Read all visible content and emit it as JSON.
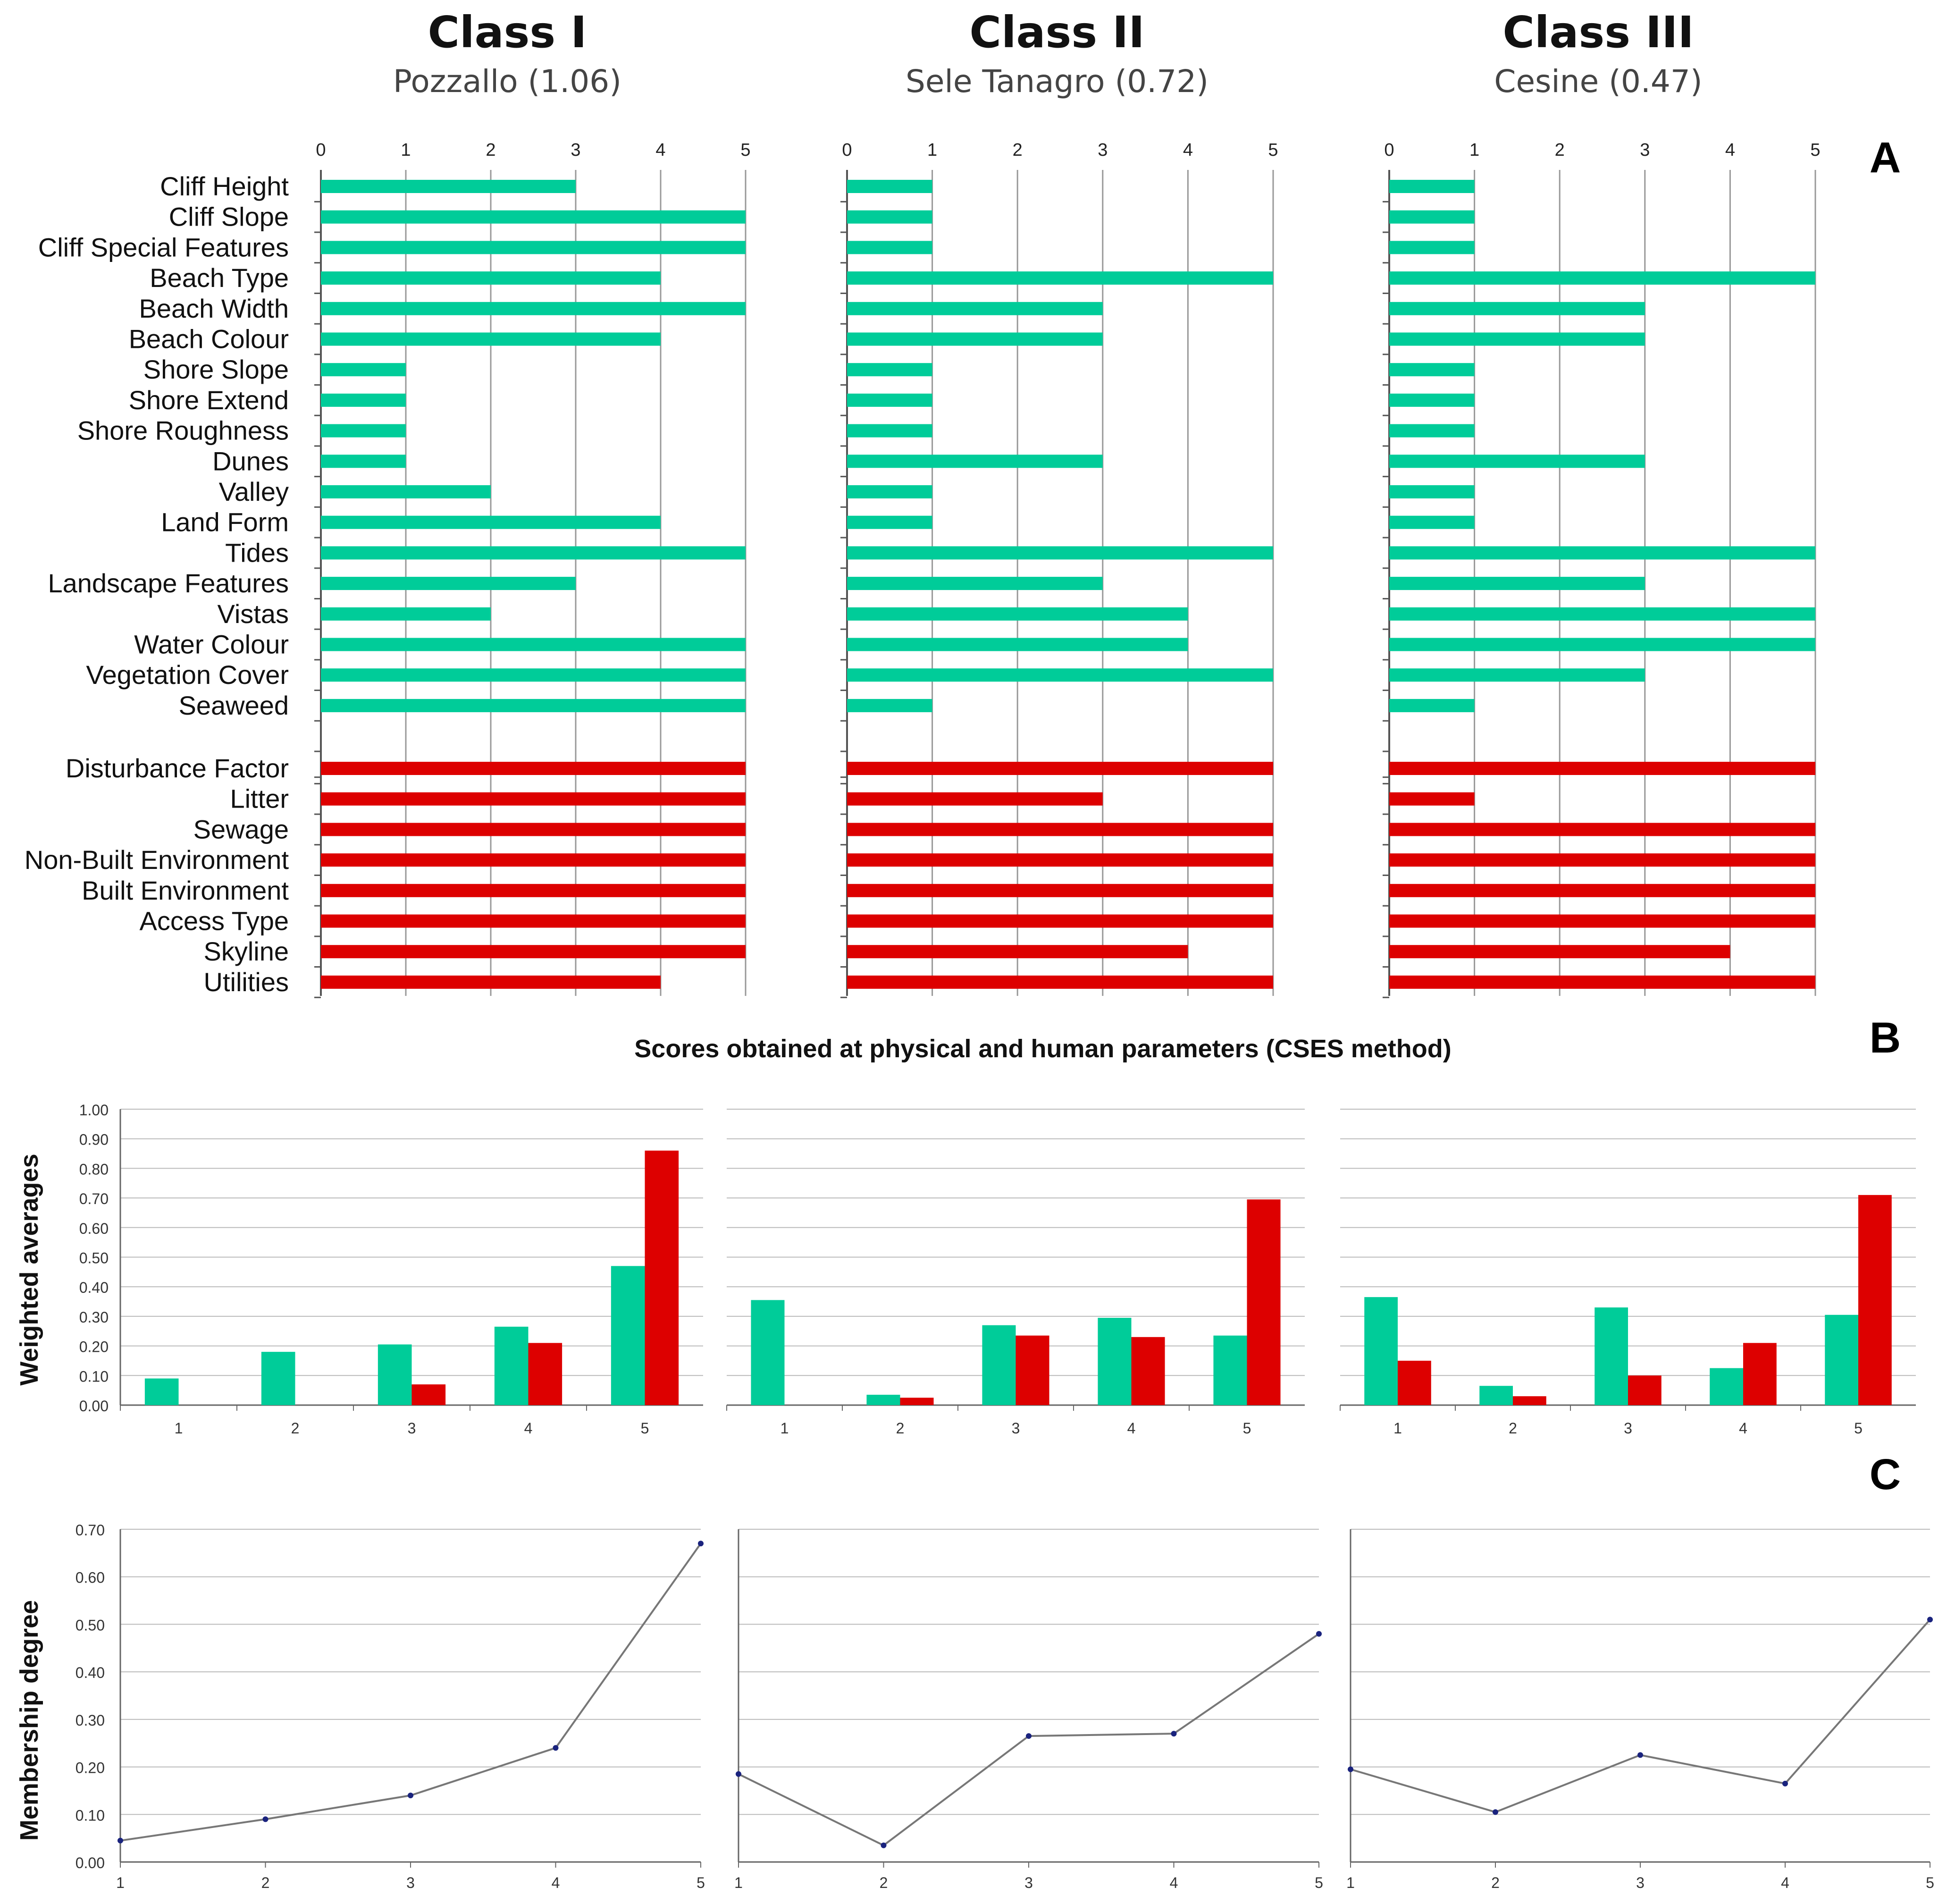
{
  "header": {
    "classes": [
      {
        "title": "Class I",
        "subtitle": "Pozzallo (1.06)"
      },
      {
        "title": "Class II",
        "subtitle": "Sele Tanagro (0.72)"
      },
      {
        "title": "Class III",
        "subtitle": "Cesine (0.47)"
      }
    ]
  },
  "panel_labels": {
    "a": "A",
    "b": "B",
    "c": "C"
  },
  "colors": {
    "physical": "#00cc99",
    "human": "#dd0000",
    "line": "#777777",
    "marker": "#1a237e",
    "grid": "#bbbbbb"
  },
  "chart_data": [
    {
      "id": "A",
      "type": "bar",
      "orientation": "horizontal",
      "x_ticks": [
        "0",
        "1",
        "2",
        "3",
        "4",
        "5"
      ],
      "xlim": [
        0,
        5
      ],
      "physical_parameters": [
        "Cliff Height",
        "Cliff Slope",
        "Cliff Special Features",
        "Beach Type",
        "Beach Width",
        "Beach Colour",
        "Shore Slope",
        "Shore Extend",
        "Shore Roughness",
        "Dunes",
        "Valley",
        "Land Form",
        "Tides",
        "Landscape Features",
        "Vistas",
        "Water Colour",
        "Vegetation Cover",
        "Seaweed"
      ],
      "human_parameters": [
        "Disturbance Factor",
        "Litter",
        "Sewage",
        "Non-Built Environment",
        "Built Environment",
        "Access Type",
        "Skyline",
        "Utilities"
      ],
      "series": [
        {
          "name": "Class I",
          "physical": [
            3,
            5,
            5,
            4,
            5,
            4,
            1,
            1,
            1,
            1,
            2,
            4,
            5,
            3,
            2,
            5,
            5,
            5
          ],
          "human": [
            5,
            5,
            5,
            5,
            5,
            5,
            5,
            4
          ]
        },
        {
          "name": "Class II",
          "physical": [
            1,
            1,
            1,
            5,
            3,
            3,
            1,
            1,
            1,
            3,
            1,
            1,
            5,
            3,
            4,
            4,
            5,
            1
          ],
          "human": [
            5,
            3,
            5,
            5,
            5,
            5,
            4,
            5
          ]
        },
        {
          "name": "Class III",
          "physical": [
            1,
            1,
            1,
            5,
            3,
            3,
            1,
            1,
            1,
            3,
            1,
            1,
            5,
            3,
            5,
            5,
            3,
            1
          ],
          "human": [
            5,
            1,
            5,
            5,
            5,
            5,
            4,
            5
          ]
        }
      ]
    },
    {
      "id": "B",
      "type": "bar",
      "title": "Scores obtained at physical and human parameters (CSES method)",
      "ylabel": "Weighted averages",
      "ylim": [
        0,
        1
      ],
      "y_ticks": [
        "0.00",
        "0.10",
        "0.20",
        "0.30",
        "0.40",
        "0.50",
        "0.60",
        "0.70",
        "0.80",
        "0.90",
        "1.00"
      ],
      "categories": [
        "1",
        "2",
        "3",
        "4",
        "5"
      ],
      "series": [
        {
          "name": "Class I",
          "physical": [
            0.09,
            0.18,
            0.205,
            0.265,
            0.47
          ],
          "human": [
            0,
            0,
            0.07,
            0.21,
            0.86
          ]
        },
        {
          "name": "Class II",
          "physical": [
            0.355,
            0.035,
            0.27,
            0.295,
            0.235
          ],
          "human": [
            0,
            0.025,
            0.235,
            0.23,
            0.695
          ]
        },
        {
          "name": "Class III",
          "physical": [
            0.365,
            0.065,
            0.33,
            0.125,
            0.305
          ],
          "human": [
            0.15,
            0.03,
            0.1,
            0.21,
            0.71
          ]
        }
      ]
    },
    {
      "id": "C",
      "type": "line",
      "ylabel": "Membership degree",
      "ylim": [
        0,
        0.7
      ],
      "y_ticks": [
        "0.00",
        "0.10",
        "0.20",
        "0.30",
        "0.40",
        "0.50",
        "0.60",
        "0.70"
      ],
      "x": [
        "1",
        "2",
        "3",
        "4",
        "5"
      ],
      "series": [
        {
          "name": "Class I",
          "values": [
            0.045,
            0.09,
            0.14,
            0.24,
            0.67
          ]
        },
        {
          "name": "Class II",
          "values": [
            0.185,
            0.035,
            0.265,
            0.27,
            0.48
          ]
        },
        {
          "name": "Class III",
          "values": [
            0.195,
            0.105,
            0.225,
            0.165,
            0.51
          ]
        }
      ]
    }
  ]
}
